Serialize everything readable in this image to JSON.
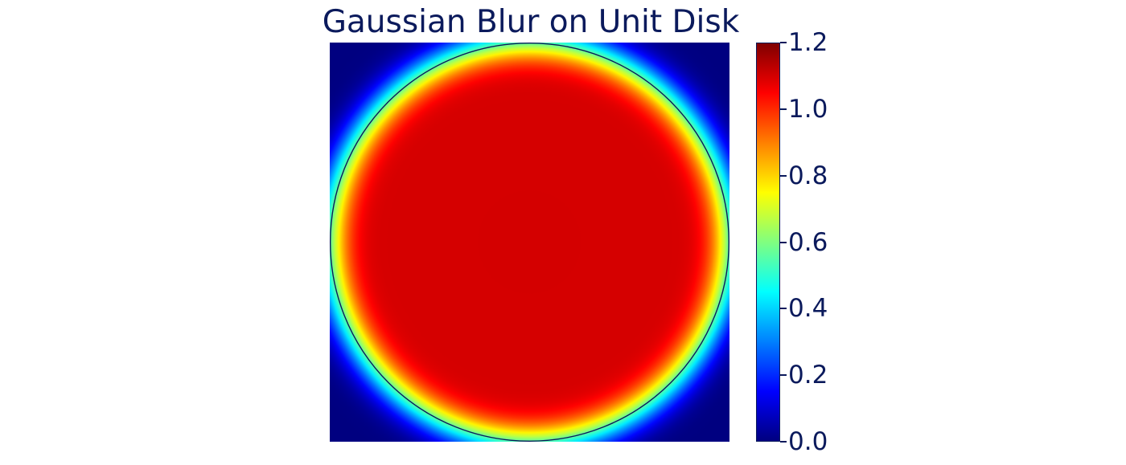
{
  "chart_data": {
    "type": "heatmap",
    "title": "Gaussian Blur on Unit Disk",
    "description": "Unit disk indicator (value 1.1 inside) convolved with a Gaussian kernel; unit circle outline drawn on top",
    "x_range": [
      -1,
      1
    ],
    "y_range": [
      -1,
      1
    ],
    "inner_value": 1.1,
    "disk_radius": 1.0,
    "blur_sigma": 0.09,
    "colormap": "jet",
    "colorbar": {
      "min": 0.0,
      "max": 1.2,
      "ticks": [
        "0.0",
        "0.2",
        "0.4",
        "0.6",
        "0.8",
        "1.0",
        "1.2"
      ]
    },
    "overlay": {
      "shape": "circle",
      "radius": 1.0,
      "color": "#0b1a5c"
    },
    "axes_visible": false,
    "grid": false
  }
}
